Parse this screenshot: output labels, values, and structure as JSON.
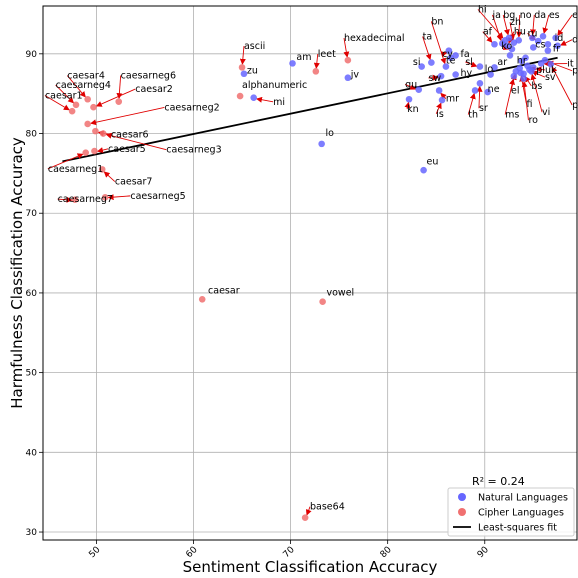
{
  "chart_data": {
    "type": "scatter",
    "title": "",
    "xlabel": "Sentiment Classification Accuracy",
    "ylabel": "Harmfulness Classification Accuracy",
    "xlim": [
      44.5,
      99.5
    ],
    "ylim": [
      29,
      96
    ],
    "xticks": [
      50,
      60,
      70,
      80,
      90
    ],
    "yticks": [
      30,
      40,
      50,
      60,
      70,
      80,
      90
    ],
    "grid": true,
    "legend_position": "lower-right",
    "annotation": "R^2 = 0.24",
    "annotation_display": "R² = 0.24",
    "colors": {
      "natural": "#6666ff",
      "cipher": "#f07070",
      "fit": "#000000",
      "arrow": "#e00000"
    },
    "fit_line": {
      "name": "Least-squares fit",
      "x": [
        46.5,
        97.5
      ],
      "y": [
        76.5,
        89.5
      ]
    },
    "series": [
      {
        "name": "Natural Languages",
        "points": [
          {
            "x": 65.2,
            "y": 87.5,
            "label": "zu",
            "lx": 65.5,
            "ly": 87.5
          },
          {
            "x": 70.2,
            "y": 88.8,
            "label": "am",
            "lx": 70.6,
            "ly": 89.2
          },
          {
            "x": 75.9,
            "y": 87.0,
            "label": "jv",
            "lx": 76.2,
            "ly": 87.0
          },
          {
            "x": 66.2,
            "y": 84.5,
            "label": "mi",
            "lx": 68.2,
            "ly": 83.6
          },
          {
            "x": 73.2,
            "y": 78.7,
            "label": "lo",
            "lx": 73.6,
            "ly": 79.7
          },
          {
            "x": 83.7,
            "y": 75.4,
            "label": "eu",
            "lx": 84.0,
            "ly": 76.1
          },
          {
            "x": 84.5,
            "y": 88.9,
            "label": "ta",
            "lx": 83.6,
            "ly": 91.8
          },
          {
            "x": 83.5,
            "y": 88.4,
            "label": "si",
            "lx": 82.6,
            "ly": 88.6
          },
          {
            "x": 86.5,
            "y": 89.5,
            "label": "te",
            "lx": 86.0,
            "ly": 88.8
          },
          {
            "x": 87.0,
            "y": 89.8,
            "label": "fa",
            "lx": 87.5,
            "ly": 89.6
          },
          {
            "x": 86.3,
            "y": 90.4,
            "label": "cy",
            "lx": 85.6,
            "ly": 89.6
          },
          {
            "x": 86.0,
            "y": 88.4,
            "label": "bn",
            "lx": 84.5,
            "ly": 93.7
          },
          {
            "x": 87.0,
            "y": 87.4,
            "label": "hy",
            "lx": 87.5,
            "ly": 87.2
          },
          {
            "x": 85.5,
            "y": 87.2,
            "label": "sw",
            "lx": 84.2,
            "ly": 86.6
          },
          {
            "x": 83.2,
            "y": 85.5,
            "label": "gu",
            "lx": 81.8,
            "ly": 85.8
          },
          {
            "x": 82.2,
            "y": 84.3,
            "label": "kn",
            "lx": 82.0,
            "ly": 82.7
          },
          {
            "x": 85.3,
            "y": 85.4,
            "label": "mr",
            "lx": 86.0,
            "ly": 84.0
          },
          {
            "x": 85.6,
            "y": 84.2,
            "label": "is",
            "lx": 85.0,
            "ly": 82.1
          },
          {
            "x": 89.0,
            "y": 85.4,
            "label": "th",
            "lx": 88.3,
            "ly": 82.0
          },
          {
            "x": 89.5,
            "y": 86.3,
            "label": "sr",
            "lx": 89.4,
            "ly": 82.8
          },
          {
            "x": 90.3,
            "y": 85.2,
            "label": "ne",
            "lx": 90.3,
            "ly": 85.2
          },
          {
            "x": 91.0,
            "y": 88.3,
            "label": "ar",
            "lx": 91.3,
            "ly": 88.6
          },
          {
            "x": 89.5,
            "y": 88.4,
            "label": "sl",
            "lx": 88.0,
            "ly": 88.6
          },
          {
            "x": 90.6,
            "y": 87.4,
            "label": "lo",
            "lx": 90.0,
            "ly": 87.7
          },
          {
            "x": 91.0,
            "y": 91.2,
            "label": "af",
            "lx": 89.8,
            "ly": 92.4
          },
          {
            "x": 91.8,
            "y": 91.3,
            "label": "ja",
            "lx": 90.8,
            "ly": 94.5
          },
          {
            "x": 92.1,
            "y": 91.7,
            "label": "hi",
            "lx": 89.3,
            "ly": 95.2
          },
          {
            "x": 92.5,
            "y": 92.0,
            "label": "bg",
            "lx": 91.9,
            "ly": 94.5
          },
          {
            "x": 93.0,
            "y": 91.4,
            "label": "zh",
            "lx": 92.6,
            "ly": 93.6
          },
          {
            "x": 92.3,
            "y": 91.0,
            "label": "hu",
            "lx": 93.0,
            "ly": 92.4
          },
          {
            "x": 92.8,
            "y": 90.6,
            "label": "ko",
            "lx": 91.7,
            "ly": 90.6
          },
          {
            "x": 93.5,
            "y": 91.7,
            "label": "no",
            "lx": 93.6,
            "ly": 94.5
          },
          {
            "x": 94.9,
            "y": 92.0,
            "label": "da",
            "lx": 95.1,
            "ly": 94.5
          },
          {
            "x": 96.0,
            "y": 92.2,
            "label": "es",
            "lx": 96.6,
            "ly": 94.5
          },
          {
            "x": 97.3,
            "y": 92.0,
            "label": "en",
            "lx": 99.0,
            "ly": 94.5
          },
          {
            "x": 95.5,
            "y": 91.6,
            "label": "ru",
            "lx": 94.4,
            "ly": 92.2
          },
          {
            "x": 96.5,
            "y": 91.2,
            "label": "id",
            "lx": 97.2,
            "ly": 91.6
          },
          {
            "x": 97.5,
            "y": 91.0,
            "label": "de",
            "lx": 99.0,
            "ly": 91.4
          },
          {
            "x": 95.0,
            "y": 90.8,
            "label": "cs",
            "lx": 95.2,
            "ly": 90.8
          },
          {
            "x": 96.5,
            "y": 90.4,
            "label": "fr",
            "lx": 97.0,
            "ly": 90.3
          },
          {
            "x": 93.8,
            "y": 89.1,
            "label": "hr",
            "lx": 93.3,
            "ly": 88.8
          },
          {
            "x": 94.4,
            "y": 88.5,
            "label": "pl",
            "lx": 95.3,
            "ly": 87.6
          },
          {
            "x": 95.0,
            "y": 88.3,
            "label": "uk",
            "lx": 96.2,
            "ly": 87.6
          },
          {
            "x": 95.8,
            "y": 88.8,
            "label": "it",
            "lx": 98.5,
            "ly": 88.4
          },
          {
            "x": 96.2,
            "y": 89.2,
            "label": "pt",
            "lx": 99.0,
            "ly": 87.5
          },
          {
            "x": 96.8,
            "y": 88.7,
            "label": "pl",
            "lx": 99.0,
            "ly": 83.2
          },
          {
            "x": 94.6,
            "y": 88.0,
            "label": "sv",
            "lx": 96.2,
            "ly": 86.7
          },
          {
            "x": 94.0,
            "y": 87.5,
            "label": "bs",
            "lx": 94.8,
            "ly": 85.6
          },
          {
            "x": 93.2,
            "y": 87.8,
            "label": "el",
            "lx": 92.7,
            "ly": 85.0
          },
          {
            "x": 93.0,
            "y": 87.2,
            "label": "ms",
            "lx": 92.1,
            "ly": 82.0
          },
          {
            "x": 93.7,
            "y": 87.6,
            "label": "fi",
            "lx": 94.3,
            "ly": 83.3
          },
          {
            "x": 94.0,
            "y": 86.9,
            "label": "ro",
            "lx": 94.5,
            "ly": 81.3
          },
          {
            "x": 94.8,
            "y": 87.8,
            "label": "vi",
            "lx": 95.9,
            "ly": 82.3
          },
          {
            "x": 93.6,
            "y": 88.2,
            "label": "",
            "lx": 93.6,
            "ly": 88.2
          },
          {
            "x": 94.2,
            "y": 89.5,
            "label": "",
            "lx": 94.2,
            "ly": 89.5
          },
          {
            "x": 92.6,
            "y": 89.8,
            "label": "",
            "lx": 92.6,
            "ly": 89.8
          }
        ]
      },
      {
        "name": "Cipher Languages",
        "points": [
          {
            "x": 65.0,
            "y": 88.3,
            "label": "ascii",
            "lx": 65.2,
            "ly": 90.6
          },
          {
            "x": 72.6,
            "y": 87.8,
            "label": "leet",
            "lx": 72.8,
            "ly": 89.6
          },
          {
            "x": 75.9,
            "y": 89.2,
            "label": "hexadecimal",
            "lx": 75.5,
            "ly": 91.6
          },
          {
            "x": 64.8,
            "y": 84.7,
            "label": "alphanumeric",
            "lx": 65.0,
            "ly": 85.7
          },
          {
            "x": 49.1,
            "y": 84.3,
            "label": "caesar4",
            "lx": 47.0,
            "ly": 86.9
          },
          {
            "x": 52.3,
            "y": 84.0,
            "label": "caesarneg6",
            "lx": 52.5,
            "ly": 86.9
          },
          {
            "x": 47.9,
            "y": 83.6,
            "label": "caesarneg4",
            "lx": 45.8,
            "ly": 85.7
          },
          {
            "x": 49.7,
            "y": 83.3,
            "label": "caesar2",
            "lx": 54.0,
            "ly": 85.2
          },
          {
            "x": 47.5,
            "y": 82.8,
            "label": "caesar1",
            "lx": 44.7,
            "ly": 84.4
          },
          {
            "x": 49.1,
            "y": 81.2,
            "label": "caesarneg2",
            "lx": 57.0,
            "ly": 82.9
          },
          {
            "x": 49.9,
            "y": 80.3,
            "label": "caesar6",
            "lx": 51.5,
            "ly": 79.5
          },
          {
            "x": 50.7,
            "y": 80.0,
            "label": "caesarneg3",
            "lx": 57.2,
            "ly": 77.6
          },
          {
            "x": 49.8,
            "y": 77.8,
            "label": "caesar5",
            "lx": 51.2,
            "ly": 77.7
          },
          {
            "x": 48.9,
            "y": 77.6,
            "label": "caesarneg1",
            "lx": 45.0,
            "ly": 75.2
          },
          {
            "x": 50.6,
            "y": 75.5,
            "label": "caesar7",
            "lx": 51.9,
            "ly": 73.6
          },
          {
            "x": 47.8,
            "y": 71.7,
            "label": "caesarneg7",
            "lx": 46.0,
            "ly": 71.4
          },
          {
            "x": 50.9,
            "y": 72.0,
            "label": "caesarneg5",
            "lx": 53.5,
            "ly": 71.8
          },
          {
            "x": 60.9,
            "y": 59.2,
            "label": "caesar",
            "lx": 61.5,
            "ly": 59.9
          },
          {
            "x": 73.3,
            "y": 58.9,
            "label": "vowel",
            "lx": 73.7,
            "ly": 59.7
          },
          {
            "x": 71.5,
            "y": 31.8,
            "label": "base64",
            "lx": 72.0,
            "ly": 32.8
          }
        ]
      }
    ]
  }
}
